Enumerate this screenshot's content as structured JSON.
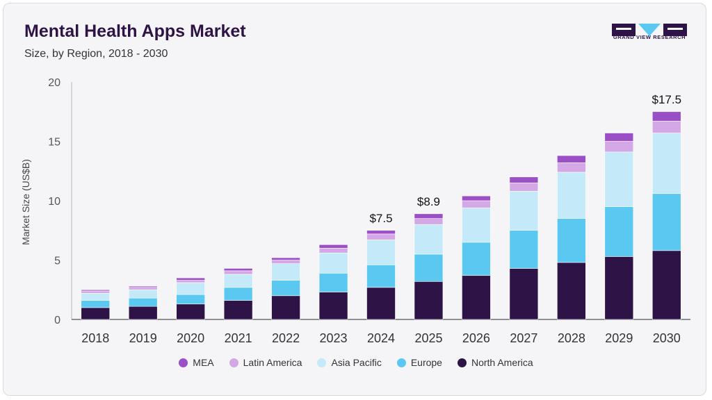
{
  "header": {
    "title": "Mental Health Apps Market",
    "subtitle": "Size, by Region, 2018 - 2030"
  },
  "logo": {
    "name": "grand-view-research-logo",
    "text": "GRAND VIEW RESEARCH"
  },
  "chart_data": {
    "type": "bar",
    "stacked": true,
    "title": "Mental Health Apps Market",
    "subtitle": "Size, by Region, 2018 - 2030",
    "xlabel": "",
    "ylabel": "Market Size (US$B)",
    "ylim": [
      0,
      20
    ],
    "yticks": [
      0,
      5,
      10,
      15,
      20
    ],
    "grid": false,
    "legend_position": "bottom",
    "categories": [
      "2018",
      "2019",
      "2020",
      "2021",
      "2022",
      "2023",
      "2024",
      "2025",
      "2026",
      "2027",
      "2028",
      "2029",
      "2030"
    ],
    "series": [
      {
        "name": "North America",
        "color": "#2e1446",
        "values": [
          1.0,
          1.1,
          1.3,
          1.6,
          2.0,
          2.3,
          2.7,
          3.2,
          3.7,
          4.3,
          4.8,
          5.3,
          5.8
        ]
      },
      {
        "name": "Europe",
        "color": "#5bc8f2",
        "values": [
          0.6,
          0.7,
          0.8,
          1.1,
          1.3,
          1.6,
          1.9,
          2.3,
          2.8,
          3.2,
          3.7,
          4.2,
          4.8
        ]
      },
      {
        "name": "Asia Pacific",
        "color": "#c4e9f9",
        "values": [
          0.6,
          0.7,
          1.0,
          1.1,
          1.4,
          1.7,
          2.1,
          2.5,
          2.9,
          3.3,
          3.9,
          4.6,
          5.1
        ]
      },
      {
        "name": "Latin America",
        "color": "#d4a7e6",
        "values": [
          0.2,
          0.2,
          0.2,
          0.3,
          0.3,
          0.4,
          0.5,
          0.5,
          0.6,
          0.7,
          0.8,
          0.9,
          1.0
        ]
      },
      {
        "name": "MEA",
        "color": "#9b4fc6",
        "values": [
          0.1,
          0.1,
          0.2,
          0.2,
          0.2,
          0.3,
          0.3,
          0.4,
          0.4,
          0.5,
          0.6,
          0.7,
          0.8
        ]
      }
    ],
    "annotations": [
      {
        "category": "2024",
        "label": "$7.5"
      },
      {
        "category": "2025",
        "label": "$8.9"
      },
      {
        "category": "2030",
        "label": "$17.5"
      }
    ]
  }
}
